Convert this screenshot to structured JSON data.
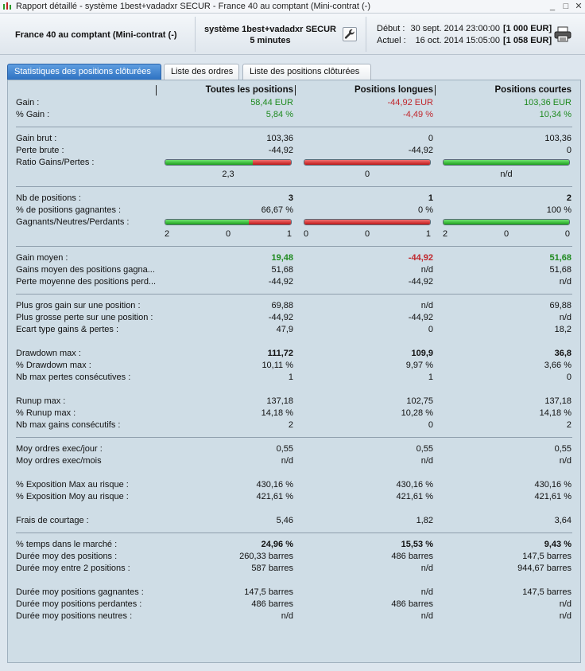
{
  "window": {
    "title": "Rapport détaillé - système 1best+vadadxr SECUR - France 40 au comptant (Mini-contrat  (-)",
    "controls": [
      "_",
      "□",
      "✕"
    ]
  },
  "header": {
    "instrument": "France 40 au comptant (Mini-contrat  (-)",
    "system_line1": "système 1best+vadadxr SECUR",
    "system_line2": "5 minutes",
    "start_label": "Début :",
    "start_date": "30 sept. 2014 23:00:00",
    "start_amount": "[1 000 EUR]",
    "current_label": "Actuel :",
    "current_date": "16 oct. 2014 15:05:00",
    "current_amount": "[1 058 EUR]"
  },
  "tabs": [
    {
      "label": "Statistiques des positions clôturées"
    },
    {
      "label": "Liste des ordres"
    },
    {
      "label": "Liste des positions clôturées"
    }
  ],
  "columns": [
    "Toutes les positions",
    "Positions longues",
    "Positions courtes"
  ],
  "colors": {
    "positive": "#1f8a1f",
    "negative": "#c0262c",
    "bar_green": "#2dba2d",
    "bar_red": "#d02a2a"
  },
  "rows": {
    "gain": {
      "label": "Gain :",
      "v": [
        "58,44 EUR",
        "-44,92 EUR",
        "103,36 EUR"
      ]
    },
    "pct_gain": {
      "label": "% Gain :",
      "v": [
        "5,84 %",
        "-4,49 %",
        "10,34 %"
      ]
    },
    "gain_brut": {
      "label": "Gain brut :",
      "v": [
        "103,36",
        "0",
        "103,36"
      ]
    },
    "perte_brute": {
      "label": "Perte brute :",
      "v": [
        "-44,92",
        "-44,92",
        "0"
      ]
    },
    "ratio": {
      "label": "Ratio Gains/Pertes :",
      "v": [
        "2,3",
        "0",
        "n/d"
      ],
      "green_share": [
        0.697,
        0,
        1
      ]
    },
    "nb_positions": {
      "label": "Nb de positions :",
      "v": [
        "3",
        "1",
        "2"
      ]
    },
    "pct_gagnantes": {
      "label": "% de positions gagnantes :",
      "v": [
        "66,67 %",
        "0 %",
        "100 %"
      ]
    },
    "gnp": {
      "label": "Gagnants/Neutres/Perdants :",
      "green_share": [
        0.667,
        0,
        1
      ],
      "counts": [
        [
          "2",
          "0",
          "1"
        ],
        [
          "0",
          "0",
          "1"
        ],
        [
          "2",
          "0",
          "0"
        ]
      ]
    },
    "gain_moyen": {
      "label": "Gain moyen :",
      "v": [
        "19,48",
        "-44,92",
        "51,68"
      ]
    },
    "gains_moyen_gagn": {
      "label": "Gains moyen des positions gagna...",
      "v": [
        "51,68",
        "n/d",
        "51,68"
      ]
    },
    "perte_moyenne_perd": {
      "label": "Perte moyenne des positions perd...",
      "v": [
        "-44,92",
        "-44,92",
        "n/d"
      ]
    },
    "plus_gros_gain": {
      "label": "Plus gros gain sur une position :",
      "v": [
        "69,88",
        "n/d",
        "69,88"
      ]
    },
    "plus_grosse_perte": {
      "label": "Plus grosse perte sur une position :",
      "v": [
        "-44,92",
        "-44,92",
        "n/d"
      ]
    },
    "ecart_type": {
      "label": "Ecart type gains & pertes :",
      "v": [
        "47,9",
        "0",
        "18,2"
      ]
    },
    "drawdown_max": {
      "label": "Drawdown max :",
      "v": [
        "111,72",
        "109,9",
        "36,8"
      ]
    },
    "pct_drawdown_max": {
      "label": "% Drawdown max :",
      "v": [
        "10,11 %",
        "9,97 %",
        "3,66 %"
      ]
    },
    "nb_max_pertes": {
      "label": "Nb max pertes consécutives :",
      "v": [
        "1",
        "1",
        "0"
      ]
    },
    "runup_max": {
      "label": "Runup max :",
      "v": [
        "137,18",
        "102,75",
        "137,18"
      ]
    },
    "pct_runup_max": {
      "label": "% Runup max :",
      "v": [
        "14,18 %",
        "10,28 %",
        "14,18 %"
      ]
    },
    "nb_max_gains": {
      "label": "Nb max gains consécutifs :",
      "v": [
        "2",
        "0",
        "2"
      ]
    },
    "moy_ordres_jour": {
      "label": "Moy ordres exec/jour :",
      "v": [
        "0,55",
        "0,55",
        "0,55"
      ]
    },
    "moy_ordres_mois": {
      "label": "Moy ordres exec/mois",
      "v": [
        "n/d",
        "n/d",
        "n/d"
      ]
    },
    "pct_expo_max": {
      "label": "% Exposition Max au risque :",
      "v": [
        "430,16 %",
        "430,16 %",
        "430,16 %"
      ]
    },
    "pct_expo_moy": {
      "label": "% Exposition Moy au risque :",
      "v": [
        "421,61 %",
        "421,61 %",
        "421,61 %"
      ]
    },
    "frais": {
      "label": "Frais de courtage :",
      "v": [
        "5,46",
        "1,82",
        "3,64"
      ]
    },
    "pct_temps": {
      "label": "% temps dans le marché :",
      "v": [
        "24,96 %",
        "15,53 %",
        "9,43 %"
      ]
    },
    "duree_moy_pos": {
      "label": "Durée moy des positions :",
      "v": [
        "260,33 barres",
        "486 barres",
        "147,5 barres"
      ]
    },
    "duree_moy_entre": {
      "label": "Durée moy entre 2 positions :",
      "v": [
        "587 barres",
        "n/d",
        "944,67 barres"
      ]
    },
    "duree_gagn": {
      "label": "Durée moy positions gagnantes :",
      "v": [
        "147,5 barres",
        "n/d",
        "147,5 barres"
      ]
    },
    "duree_perd": {
      "label": "Durée moy positions perdantes :",
      "v": [
        "486 barres",
        "486 barres",
        "n/d"
      ]
    },
    "duree_neutres": {
      "label": "Durée moy positions neutres :",
      "v": [
        "n/d",
        "n/d",
        "n/d"
      ]
    }
  }
}
